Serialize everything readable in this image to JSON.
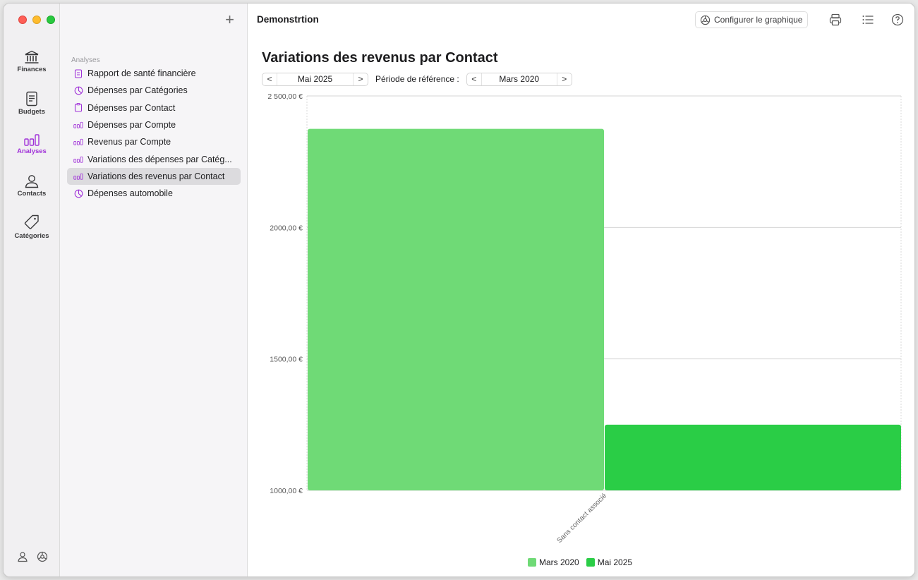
{
  "window": {
    "title": "Demonstrtion"
  },
  "rail": {
    "items": [
      {
        "label": "Finances",
        "icon": "bank-icon"
      },
      {
        "label": "Budgets",
        "icon": "budget-doc-icon"
      },
      {
        "label": "Analyses",
        "icon": "bar-chart-icon",
        "active": true
      },
      {
        "label": "Contacts",
        "icon": "person-icon"
      },
      {
        "label": "Catégories",
        "icon": "tag-icon"
      }
    ]
  },
  "sidebar": {
    "section_title": "Analyses",
    "items": [
      {
        "label": "Rapport de santé financière",
        "icon": "report-icon"
      },
      {
        "label": "Dépenses par Catégories",
        "icon": "pie-icon"
      },
      {
        "label": "Dépenses par Contact",
        "icon": "clipboard-icon"
      },
      {
        "label": "Dépenses par Compte",
        "icon": "bars-icon"
      },
      {
        "label": "Revenus par Compte",
        "icon": "bars-icon"
      },
      {
        "label": "Variations des dépenses par Catég...",
        "icon": "bars-icon"
      },
      {
        "label": "Variations des revenus par Contact",
        "icon": "bars-icon",
        "selected": true
      },
      {
        "label": "Dépenses automobile",
        "icon": "pie-icon"
      }
    ]
  },
  "toolbar": {
    "configure_label": "Configurer le graphique"
  },
  "report": {
    "title": "Variations des revenus par Contact",
    "period": "Mai 2025",
    "reference_label": "Période de référence :",
    "reference_period": "Mars 2020"
  },
  "colors": {
    "accent": "#a032d8",
    "series_a": "#6fda76",
    "series_b": "#2acd46"
  },
  "chart_data": {
    "type": "bar",
    "categories": [
      "Sans contact associé"
    ],
    "series": [
      {
        "name": "Mars 2020",
        "values": [
          2375
        ]
      },
      {
        "name": "Mai 2025",
        "values": [
          1250
        ]
      }
    ],
    "ylim": [
      1000,
      2500
    ],
    "yticks": [
      1000,
      1500,
      2000,
      2500
    ],
    "ytick_labels": [
      "1000,00 €",
      "1500,00 €",
      "2000,00 €",
      "2 500,00 €"
    ],
    "grid": true,
    "legend": "bottom"
  }
}
